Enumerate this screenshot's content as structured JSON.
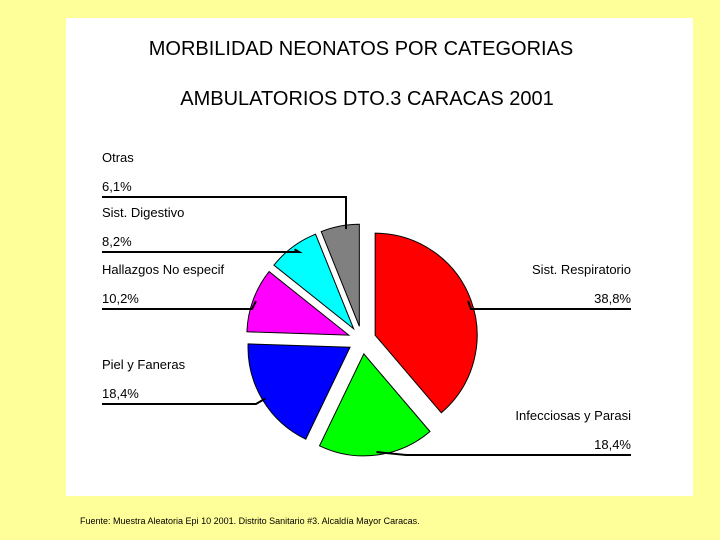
{
  "colors": {
    "background": "#ffff99",
    "panel": "#ffffff",
    "slices": [
      "#ff0000",
      "#00ff00",
      "#0000ff",
      "#ff00ff",
      "#00ffff",
      "#808080"
    ]
  },
  "chart_data": {
    "type": "pie",
    "title": "MORBILIDAD NEONATOS POR CATEGORIAS",
    "subtitle": "AMBULATORIOS DTO.3 CARACAS 2001",
    "slices": [
      {
        "label": "Sist. Respiratorio",
        "value_label": "38,8%",
        "value": 38.8
      },
      {
        "label": "Infecciosas y Parasi",
        "value_label": "18,4%",
        "value": 18.4
      },
      {
        "label": "Piel y Faneras",
        "value_label": "18,4%",
        "value": 18.4
      },
      {
        "label": "Hallazgos No especif",
        "value_label": "10,2%",
        "value": 10.2
      },
      {
        "label": "Sist. Digestivo",
        "value_label": "8,2%",
        "value": 8.2
      },
      {
        "label": "Otras",
        "value_label": "6,1%",
        "value": 6.1
      }
    ],
    "exploded": true,
    "legend": "callout-labels"
  },
  "footer": {
    "source": "Fuente: Muestra Aleatoria Epi 10 2001. Distrito Sanitario #3. Alcaldía Mayor Caracas."
  }
}
